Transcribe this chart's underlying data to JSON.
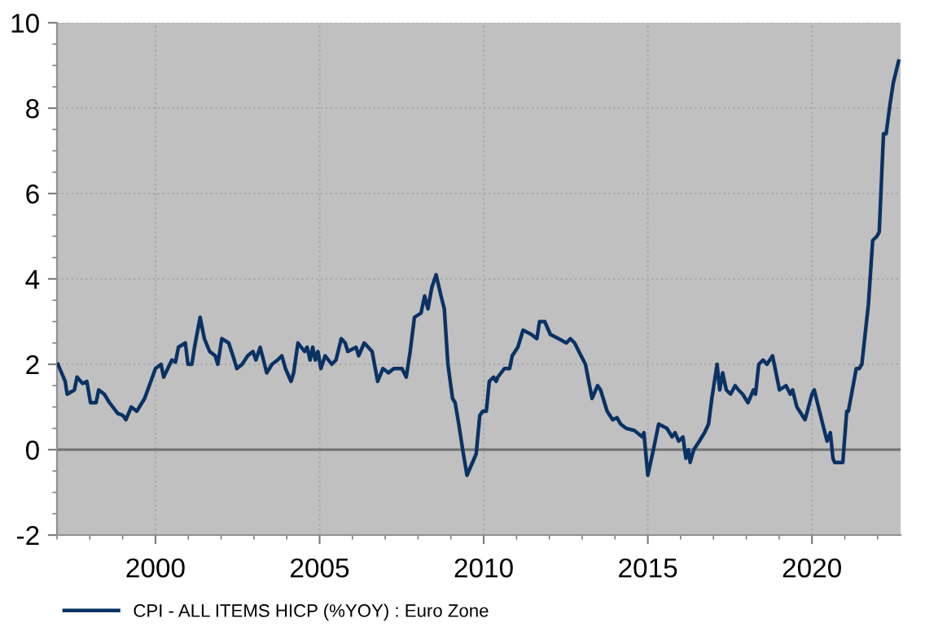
{
  "chart_data": {
    "type": "line",
    "x": [
      1997.03,
      1997.25,
      1997.31,
      1997.53,
      1997.61,
      1997.78,
      1997.91,
      1998.02,
      1998.19,
      1998.27,
      1998.44,
      1998.6,
      1998.85,
      1999.01,
      1999.1,
      1999.26,
      1999.43,
      1999.67,
      2000.0,
      2000.17,
      2000.25,
      2000.5,
      2000.61,
      2000.7,
      2000.91,
      2000.99,
      2001.11,
      2001.19,
      2001.36,
      2001.49,
      2001.65,
      2001.82,
      2001.9,
      2002.02,
      2002.23,
      2002.36,
      2002.48,
      2002.64,
      2002.81,
      2002.97,
      2003.06,
      2003.19,
      2003.39,
      2003.55,
      2003.72,
      2003.85,
      2003.96,
      2004.13,
      2004.21,
      2004.34,
      2004.54,
      2004.62,
      2004.71,
      2004.79,
      2004.87,
      2004.95,
      2005.04,
      2005.17,
      2005.37,
      2005.5,
      2005.66,
      2005.78,
      2005.86,
      2006.11,
      2006.19,
      2006.36,
      2006.6,
      2006.77,
      2006.93,
      2007.1,
      2007.26,
      2007.51,
      2007.64,
      2007.76,
      2007.89,
      2008.09,
      2008.2,
      2008.3,
      2008.42,
      2008.55,
      2008.7,
      2008.8,
      2008.91,
      2009.05,
      2009.13,
      2009.24,
      2009.36,
      2009.49,
      2009.77,
      2009.88,
      2009.97,
      2010.08,
      2010.17,
      2010.3,
      2010.38,
      2010.43,
      2010.63,
      2010.79,
      2010.87,
      2011.04,
      2011.2,
      2011.45,
      2011.62,
      2011.7,
      2011.86,
      2012.03,
      2012.28,
      2012.52,
      2012.64,
      2012.77,
      2012.9,
      2013.1,
      2013.3,
      2013.47,
      2013.56,
      2013.76,
      2013.93,
      2014.06,
      2014.17,
      2014.34,
      2014.59,
      2014.83,
      2014.88,
      2015.0,
      2015.17,
      2015.33,
      2015.58,
      2015.74,
      2015.83,
      2015.94,
      2016.07,
      2016.16,
      2016.24,
      2016.29,
      2016.4,
      2016.57,
      2016.73,
      2016.85,
      2016.95,
      2017.11,
      2017.19,
      2017.28,
      2017.39,
      2017.52,
      2017.66,
      2017.76,
      2017.89,
      2018.05,
      2018.22,
      2018.28,
      2018.38,
      2018.51,
      2018.63,
      2018.8,
      2019.01,
      2019.21,
      2019.34,
      2019.41,
      2019.54,
      2019.79,
      2020.0,
      2020.07,
      2020.36,
      2020.46,
      2020.56,
      2020.64,
      2020.69,
      2020.94,
      2021.06,
      2021.11,
      2021.35,
      2021.44,
      2021.52,
      2021.72,
      2021.85,
      2021.98,
      2022.05,
      2022.18,
      2022.26,
      2022.38,
      2022.48,
      2022.64
    ],
    "series": [
      {
        "name": "CPI - ALL ITEMS HICP (%YOY) : Euro Zone",
        "color": "#0a3264",
        "values": [
          2.0,
          1.6,
          1.3,
          1.4,
          1.7,
          1.55,
          1.6,
          1.1,
          1.1,
          1.4,
          1.3,
          1.1,
          0.85,
          0.8,
          0.7,
          1.0,
          0.9,
          1.2,
          1.9,
          2.0,
          1.7,
          2.1,
          2.05,
          2.4,
          2.5,
          2.0,
          2.0,
          2.4,
          3.1,
          2.6,
          2.3,
          2.2,
          2.0,
          2.6,
          2.5,
          2.2,
          1.9,
          2.0,
          2.2,
          2.3,
          2.1,
          2.4,
          1.8,
          2.0,
          2.1,
          2.2,
          1.9,
          1.6,
          1.8,
          2.5,
          2.3,
          2.4,
          2.1,
          2.4,
          2.1,
          2.3,
          1.9,
          2.2,
          2.0,
          2.1,
          2.6,
          2.5,
          2.3,
          2.4,
          2.2,
          2.5,
          2.3,
          1.6,
          1.9,
          1.8,
          1.9,
          1.9,
          1.7,
          2.3,
          3.1,
          3.2,
          3.6,
          3.3,
          3.8,
          4.1,
          3.6,
          3.3,
          2.0,
          1.2,
          1.1,
          0.6,
          0.0,
          -0.6,
          -0.1,
          0.8,
          0.9,
          0.9,
          1.6,
          1.7,
          1.6,
          1.7,
          1.9,
          1.9,
          2.2,
          2.4,
          2.8,
          2.7,
          2.6,
          3.0,
          3.0,
          2.7,
          2.6,
          2.5,
          2.6,
          2.5,
          2.3,
          2.0,
          1.2,
          1.5,
          1.4,
          0.9,
          0.7,
          0.75,
          0.6,
          0.5,
          0.45,
          0.3,
          0.4,
          -0.6,
          0.0,
          0.6,
          0.5,
          0.3,
          0.4,
          0.2,
          0.3,
          -0.2,
          0.0,
          -0.3,
          0.0,
          0.2,
          0.4,
          0.6,
          1.2,
          2.0,
          1.4,
          1.8,
          1.4,
          1.3,
          1.5,
          1.4,
          1.3,
          1.1,
          1.4,
          1.3,
          2.0,
          2.1,
          2.0,
          2.2,
          1.4,
          1.5,
          1.3,
          1.4,
          1.0,
          0.7,
          1.3,
          1.4,
          0.5,
          0.2,
          0.4,
          -0.2,
          -0.3,
          -0.3,
          0.9,
          0.9,
          1.9,
          1.9,
          2.0,
          3.4,
          4.9,
          5.0,
          5.1,
          7.4,
          7.4,
          8.1,
          8.6,
          9.1
        ]
      }
    ],
    "xlim": [
      1997,
      2022.7
    ],
    "xticks": [
      2000,
      2005,
      2010,
      2015,
      2020
    ],
    "ylim": [
      -2,
      10
    ],
    "yticks": [
      -2,
      0,
      2,
      4,
      6,
      8,
      10
    ],
    "ref_lines": [
      {
        "axis": "y",
        "value": 0,
        "color": "#707070"
      }
    ],
    "grid": true,
    "legend": "bottom",
    "marker": "none",
    "line_style": "solid"
  }
}
